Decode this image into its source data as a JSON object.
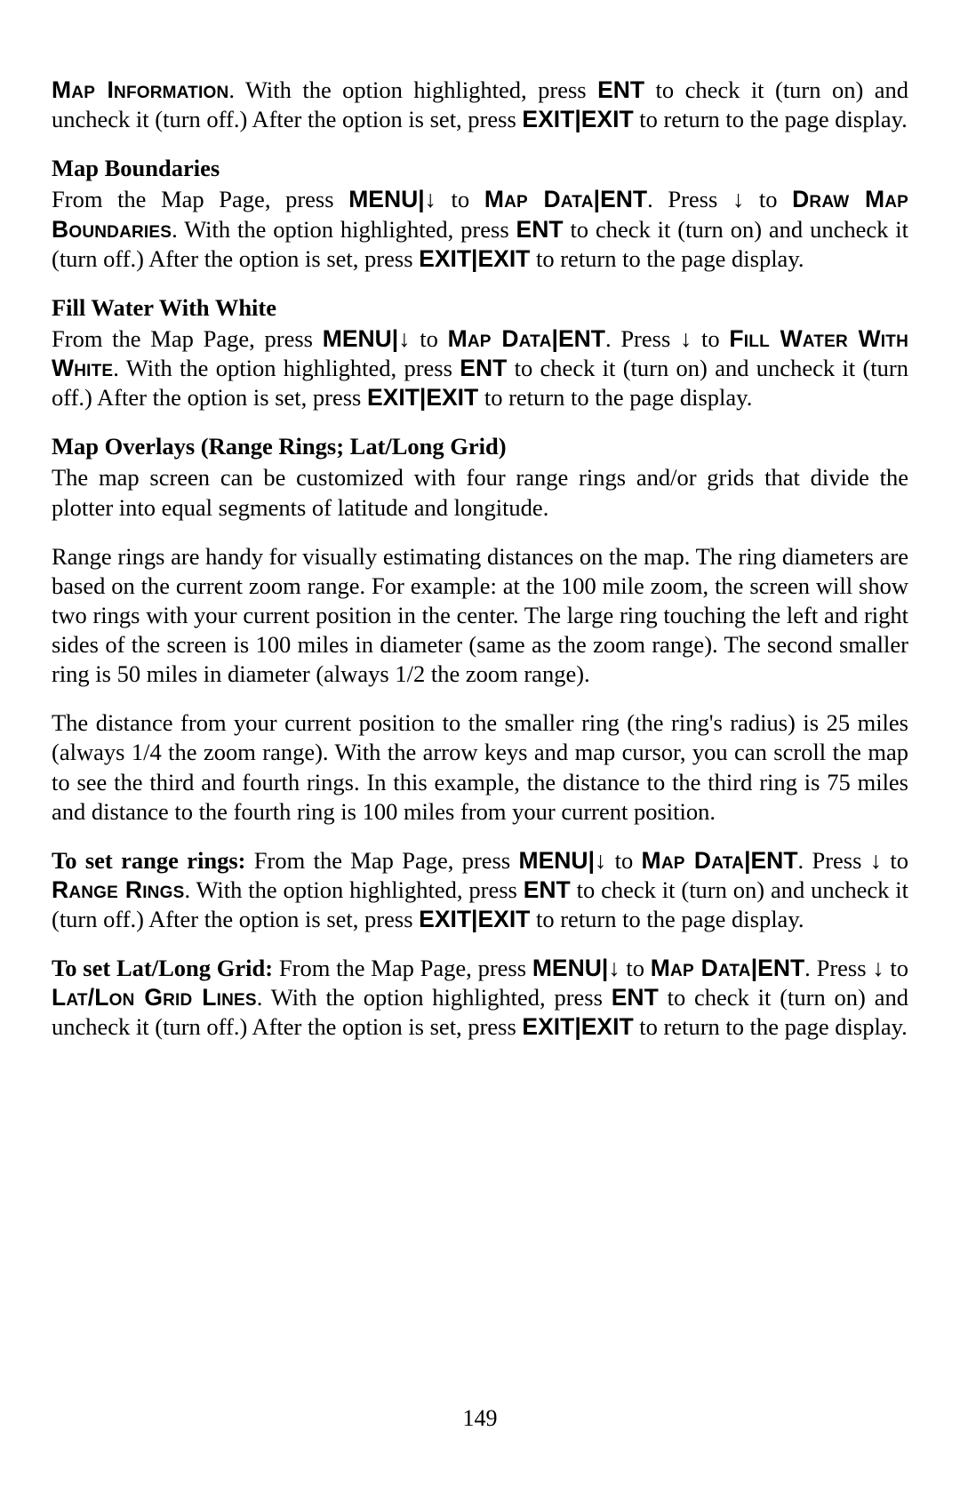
{
  "colors": {
    "text": "#000000",
    "background": "#ffffff"
  },
  "typography": {
    "body_font": "Century Schoolbook serif",
    "key_font": "Arial sans-serif",
    "body_size_pt": 20,
    "line_height": 1.25
  },
  "keys": {
    "menu": "MENU",
    "ent": "ENT",
    "exit": "EXIT",
    "down_arrow": "↓"
  },
  "smallcaps": {
    "map_information": "Map Information",
    "map_data": "Map Data",
    "draw_map_boundaries": "Draw Map Boundaries",
    "fill_water_with_white": "Fill Water With White",
    "range_rings": "Range Rings",
    "lat_lon_grid_lines": "Lat/Lon Grid Lines"
  },
  "s1": {
    "t1": ". With the option highlighted, press ",
    "t2": " to check it (turn on) and uncheck it (turn off.) After the option is set, press ",
    "t3": " to return to the page display."
  },
  "s2": {
    "heading": "Map Boundaries",
    "t1": "From the Map Page, press ",
    "t2": " to ",
    "t3": ". Press ",
    "t4": " to ",
    "t5": ". With the option highlighted, press ",
    "t6": " to check it (turn on) and uncheck it (turn off.) After the option is set, press ",
    "t7": " to return to the page display."
  },
  "s3": {
    "heading": "Fill Water With White",
    "t1": "From the Map Page, press ",
    "t2": " to ",
    "t3": ". Press ",
    "t4": " to ",
    "t5": ". With the option highlighted, press ",
    "t6": " to check it (turn on) and uncheck it (turn off.) After the option is set, press ",
    "t7": " to return to the page display."
  },
  "s4": {
    "heading": "Map Overlays (Range Rings; Lat/Long Grid)",
    "p1": "The map screen can be customized with four range rings and/or grids that divide the plotter into equal segments of latitude and longitude.",
    "p2": "Range rings are handy for visually estimating distances on the map. The ring diameters are based on the current zoom range. For example: at the 100 mile zoom, the screen will show two rings with your current position in the center. The large ring touching the left and right sides of the screen is 100 miles in diameter (same as the zoom range). The second smaller ring is 50 miles in diameter (always 1/2 the zoom range).",
    "p3": "The distance from your current position to the smaller ring (the ring's radius) is 25 miles (always 1/4 the zoom range). With the arrow keys and map cursor, you can scroll the map to see the third and fourth rings. In this example, the distance to the third ring is 75 miles and distance to the fourth ring is 100 miles from your current position."
  },
  "s5": {
    "lead": "To set range rings:",
    "t1": " From the Map Page, press ",
    "t2": " to ",
    "t3": ". Press ",
    "t4": " to ",
    "t5": ". With the option highlighted, press ",
    "t6": " to check it (turn on) and uncheck it (turn off.) After the option is set, press ",
    "t7": " to return to the page display."
  },
  "s6": {
    "lead": "To set Lat/Long Grid:",
    "t1": " From the Map Page, press ",
    "t2": " to ",
    "t3": ". Press ",
    "t4": " to ",
    "t5": ". With the option highlighted, press ",
    "t6": " to check it (turn on) and uncheck it (turn off.) After the option is set, press ",
    "t7": " to return to the page display."
  },
  "footer": {
    "page_number": "149"
  }
}
